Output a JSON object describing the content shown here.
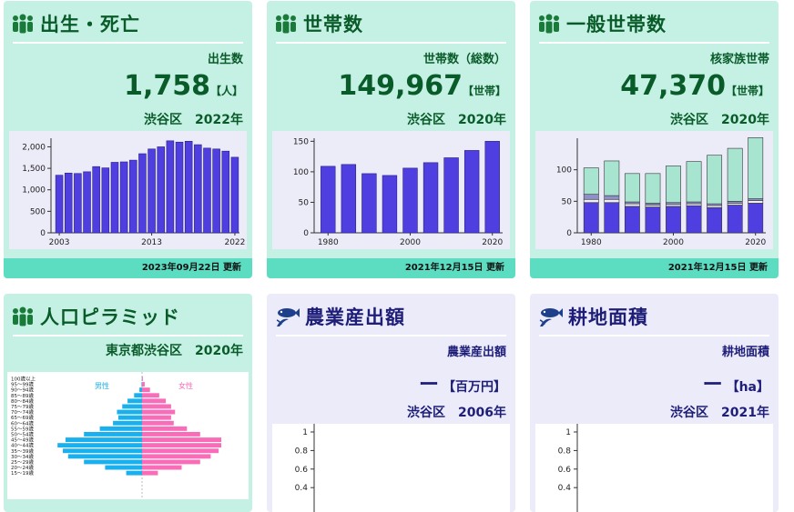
{
  "cards": {
    "births": {
      "title": "出生・死亡",
      "label": "出生数",
      "value": "1,758",
      "unit": "【人】",
      "place": "渋谷区",
      "year": "2022年",
      "updated": "2023年09月22日 更新"
    },
    "households": {
      "title": "世帯数",
      "label": "世帯数（総数）",
      "value": "149,967",
      "unit": "【世帯】",
      "place": "渋谷区",
      "year": "2020年",
      "updated": "2021年12月15日 更新"
    },
    "general": {
      "title": "一般世帯数",
      "label": "核家族世帯",
      "value": "47,370",
      "unit": "【世帯】",
      "place": "渋谷区",
      "year": "2020年",
      "updated": "2021年12月15日 更新"
    },
    "pyramid": {
      "title": "人口ピラミッド",
      "place": "東京都渋谷区",
      "year": "2020年"
    },
    "agri": {
      "title": "農業産出額",
      "label": "農業産出額",
      "value": "ー",
      "unit": "【百万円】",
      "place": "渋谷区",
      "year": "2006年"
    },
    "farmland": {
      "title": "耕地面積",
      "label": "耕地面積",
      "value": "ー",
      "unit": "【ha】",
      "place": "渋谷区",
      "year": "2021年"
    }
  },
  "colors": {
    "green_card": "#c5f1e4",
    "purple_card": "#ecebfa",
    "bar": "#4f3fe0",
    "footer": "#5cdcc0",
    "male": "#1ab0ee",
    "female": "#f86cb8"
  },
  "chart_data": [
    {
      "type": "bar",
      "x": [
        2003,
        2004,
        2005,
        2006,
        2007,
        2008,
        2009,
        2010,
        2011,
        2012,
        2013,
        2014,
        2015,
        2016,
        2017,
        2018,
        2019,
        2020,
        2021,
        2022
      ],
      "values": [
        1340,
        1390,
        1380,
        1420,
        1540,
        1510,
        1640,
        1650,
        1690,
        1840,
        1950,
        2000,
        2140,
        2110,
        2130,
        2050,
        1970,
        1950,
        1900,
        1758
      ],
      "xticks": [
        "2003",
        "2013",
        "2022"
      ],
      "yticks": [
        "0",
        "500",
        "1,000",
        "1,500",
        "2,000"
      ],
      "ylim": [
        0,
        2200
      ]
    },
    {
      "type": "bar",
      "x": [
        1980,
        1985,
        1990,
        1995,
        2000,
        2005,
        2010,
        2015,
        2020
      ],
      "values": [
        109,
        112,
        97,
        94,
        106,
        115,
        123,
        135,
        150
      ],
      "xticks": [
        "1980",
        "2000",
        "2020"
      ],
      "yticks": [
        "0",
        "50",
        "100",
        "150"
      ],
      "ylim": [
        0,
        155
      ]
    },
    {
      "type": "bar",
      "x": [
        1980,
        1985,
        1990,
        1995,
        2000,
        2005,
        2010,
        2015,
        2020
      ],
      "series": [
        {
          "values": [
            48,
            48,
            42,
            41,
            42,
            43,
            40,
            44,
            47
          ]
        },
        {
          "values": [
            5,
            5,
            4,
            3,
            3,
            3,
            3,
            3,
            4
          ]
        },
        {
          "values": [
            8,
            6,
            3,
            3,
            3,
            3,
            3,
            3,
            3
          ]
        },
        {
          "values": [
            42,
            55,
            45,
            47,
            58,
            64,
            77,
            84,
            97
          ]
        }
      ],
      "stack_colors": [
        "#4f3fe0",
        "#f0f0f0",
        "#8f8fcc",
        "#a8e5d0"
      ],
      "xticks": [
        "1980",
        "2000",
        "2020"
      ],
      "yticks": [
        "0",
        "50",
        "100"
      ],
      "ylim": [
        0,
        150
      ]
    },
    {
      "type": "bar",
      "orientation": "horizontal",
      "categories": [
        "100歳以上",
        "95～99歳",
        "90～94歳",
        "85～89歳",
        "80～84歳",
        "75～79歳",
        "70～74歳",
        "65～69歳",
        "60～64歳",
        "55～59歳",
        "50～54歳",
        "45～49歳",
        "40～44歳",
        "35～39歳",
        "30～34歳",
        "25～29歳",
        "20～24歳",
        "15～19歳"
      ],
      "series": [
        {
          "name": "男性",
          "values": [
            0.1,
            0.2,
            1,
            3,
            5.5,
            7.5,
            9.5,
            9,
            11,
            16,
            22,
            29,
            32,
            30,
            28,
            22,
            14,
            6
          ]
        },
        {
          "name": "女性",
          "values": [
            0.3,
            1,
            3,
            6.5,
            9,
            11,
            12.5,
            11,
            12,
            17,
            22,
            30,
            30,
            29,
            26,
            22,
            15,
            6
          ]
        }
      ]
    },
    {
      "type": "line",
      "yticks": [
        "1",
        "0.8",
        "0.6",
        "0.4"
      ],
      "values": []
    },
    {
      "type": "line",
      "yticks": [
        "1",
        "0.8",
        "0.6",
        "0.4"
      ],
      "values": []
    }
  ]
}
